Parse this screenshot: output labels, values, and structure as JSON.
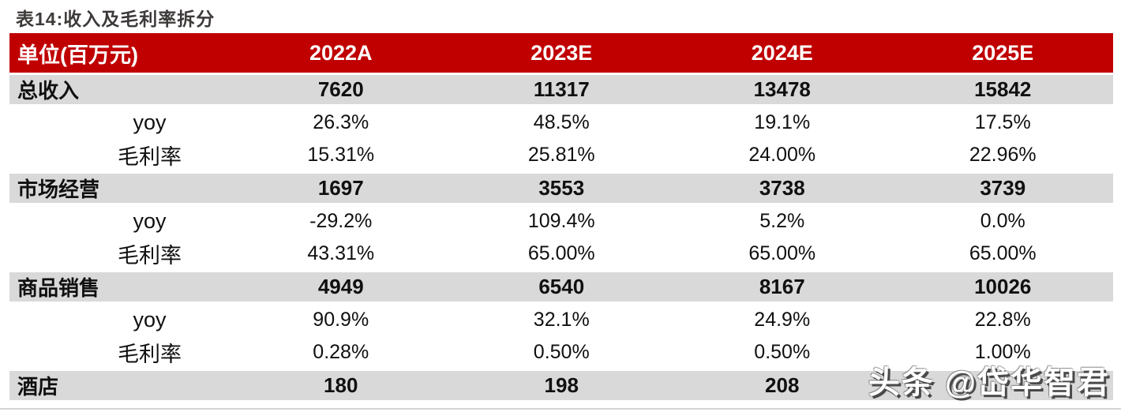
{
  "page": {
    "title": "表14:收入及毛利率拆分"
  },
  "table": {
    "unit_header": "单位(百万元)",
    "year_columns": [
      "2022A",
      "2023E",
      "2024E",
      "2025E"
    ],
    "rows": [
      {
        "label": "总收入",
        "type": "section",
        "values": [
          "7620",
          "11317",
          "13478",
          "15842"
        ]
      },
      {
        "label": "yoy",
        "type": "sub",
        "values": [
          "26.3%",
          "48.5%",
          "19.1%",
          "17.5%"
        ]
      },
      {
        "label": "毛利率",
        "type": "sub",
        "values": [
          "15.31%",
          "25.81%",
          "24.00%",
          "22.96%"
        ]
      },
      {
        "label": "市场经营",
        "type": "section",
        "values": [
          "1697",
          "3553",
          "3738",
          "3739"
        ]
      },
      {
        "label": "yoy",
        "type": "sub",
        "values": [
          "-29.2%",
          "109.4%",
          "5.2%",
          "0.0%"
        ]
      },
      {
        "label": "毛利率",
        "type": "sub",
        "values": [
          "43.31%",
          "65.00%",
          "65.00%",
          "65.00%"
        ]
      },
      {
        "label": "商品销售",
        "type": "section",
        "values": [
          "4949",
          "6540",
          "8167",
          "10026"
        ]
      },
      {
        "label": "yoy",
        "type": "sub",
        "values": [
          "90.9%",
          "32.1%",
          "24.9%",
          "22.8%"
        ]
      },
      {
        "label": "毛利率",
        "type": "sub",
        "values": [
          "0.28%",
          "0.50%",
          "0.50%",
          "1.00%"
        ]
      },
      {
        "label": "酒店",
        "type": "section",
        "values": [
          "180",
          "198",
          "208",
          ""
        ]
      }
    ]
  },
  "watermark": {
    "text": "头条 @岱华智君"
  },
  "colors": {
    "header_bg": "#c00000",
    "header_text": "#ffffff",
    "section_band_bg": "#d9d9d9",
    "title_text": "#3e3a3a",
    "body_text": "#101010"
  }
}
